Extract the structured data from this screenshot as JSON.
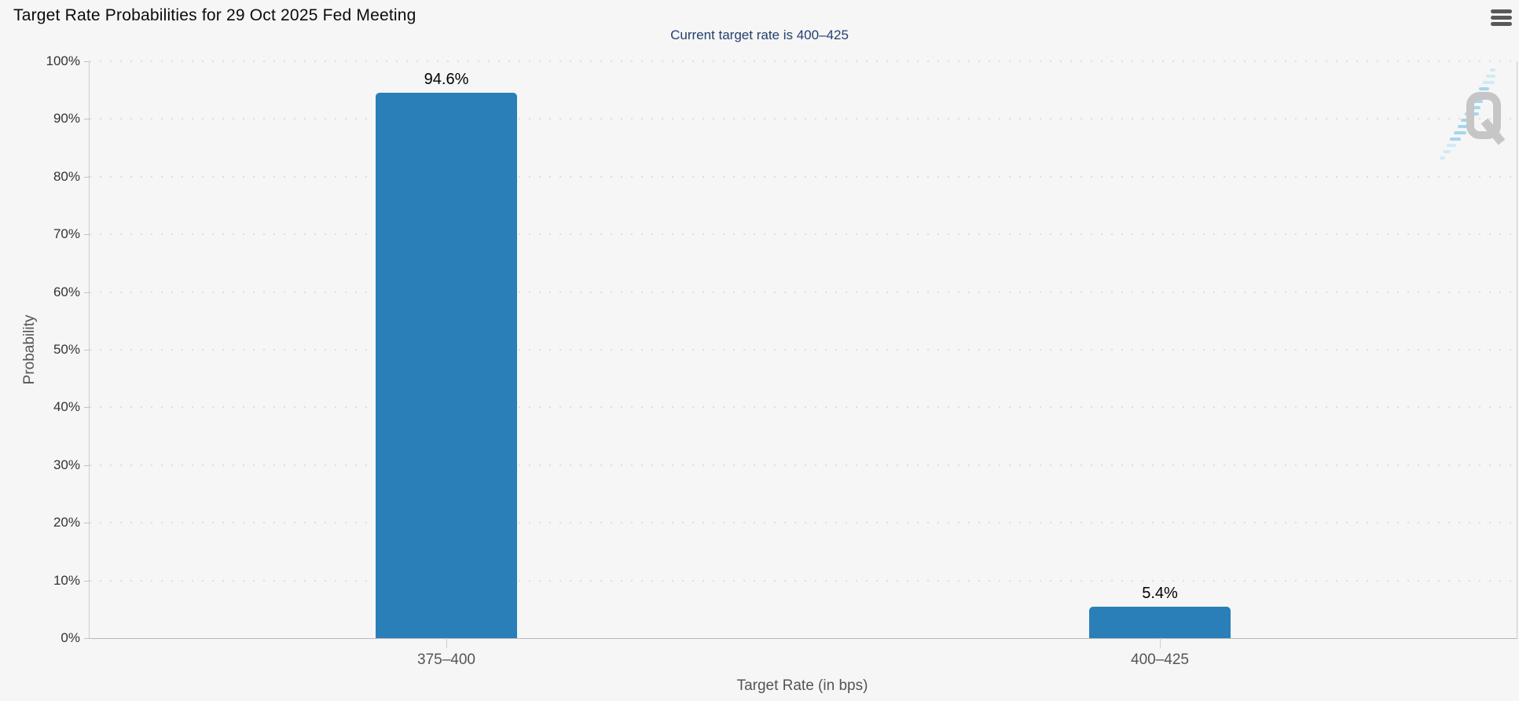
{
  "header": {
    "title": "Target Rate Probabilities for 29 Oct 2025 Fed Meeting",
    "subtitle": "Current target rate is 400–425"
  },
  "menu": {
    "icon": "hamburger-menu-icon"
  },
  "chart_data": {
    "type": "bar",
    "title": "Target Rate Probabilities for 29 Oct 2025 Fed Meeting",
    "subtitle": "Current target rate is 400–425",
    "categories": [
      "375–400",
      "400–425"
    ],
    "values": [
      94.6,
      5.4
    ],
    "value_labels": [
      "94.6%",
      "5.4%"
    ],
    "xlabel": "Target Rate (in bps)",
    "ylabel": "Probability",
    "ylim": [
      0,
      100
    ],
    "ytick_step": 10,
    "ytick_labels": [
      "0%",
      "10%",
      "20%",
      "30%",
      "40%",
      "50%",
      "60%",
      "70%",
      "80%",
      "90%",
      "100%"
    ],
    "grid": "horizontal-dotted",
    "legend": "none",
    "bar_color": "#2b7fb8"
  },
  "watermark": {
    "letter": "Q"
  },
  "colors": {
    "background": "#f5f6f5",
    "bar": "#2b7fb8",
    "subtitle_text": "#263e6f",
    "axis_text": "#555555",
    "tick_text": "#333333",
    "grid": "#dedede",
    "axis_line": "#cccccc"
  }
}
